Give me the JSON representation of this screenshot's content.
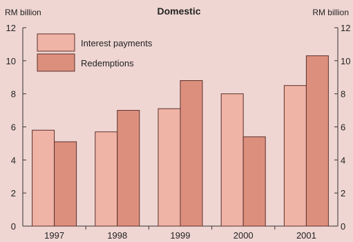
{
  "chart_data": {
    "type": "bar",
    "title": "Domestic",
    "ylabel_left": "RM billion",
    "ylabel_right": "RM billion",
    "categories": [
      "1997",
      "1998",
      "1999",
      "2000",
      "2001"
    ],
    "ylim": [
      0,
      12
    ],
    "yticks": [
      0,
      2,
      4,
      6,
      8,
      10,
      12
    ],
    "series": [
      {
        "name": "Interest payments",
        "values": [
          5.8,
          5.7,
          7.1,
          8.0,
          8.5
        ],
        "color": "#f0b4a7"
      },
      {
        "name": "Redemptions",
        "values": [
          5.1,
          7.0,
          8.8,
          5.4,
          10.3
        ],
        "color": "#dd8f7e"
      }
    ],
    "grid": false,
    "legend_position": "top-left"
  }
}
